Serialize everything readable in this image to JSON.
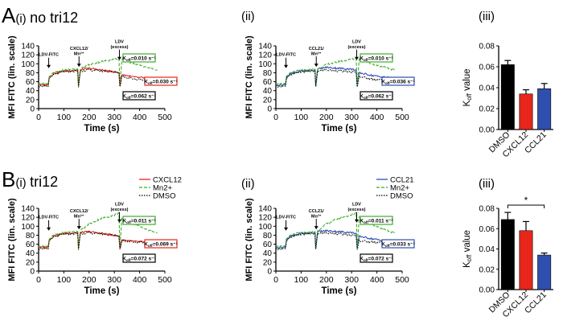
{
  "figure": {
    "row_a_letter": "A",
    "row_a_title": "no tri12",
    "row_b_letter": "B",
    "row_b_title": "tri12",
    "panel_i": "(i)",
    "panel_ii": "(ii)",
    "panel_iii": "(iii)"
  },
  "colors": {
    "red": "#e8261c",
    "green": "#3eac2c",
    "blue": "#2f4faf",
    "black": "#000000"
  },
  "chart_data": [
    {
      "id": "A-i",
      "type": "line",
      "xlabel": "Time (s)",
      "ylabel": "MFI FITC (lin. scale)",
      "xlim": [
        0,
        500
      ],
      "ylim": [
        0,
        140
      ],
      "xticks": [
        0,
        100,
        200,
        300,
        400,
        500
      ],
      "yticks": [
        0,
        20,
        40,
        60,
        80,
        100,
        120,
        140
      ],
      "annotations": [
        {
          "text": "LDV-FITC",
          "x": 40
        },
        {
          "text": "CXCL12/",
          "text2": "Mn²⁺",
          "x": 160
        },
        {
          "text": "LDV",
          "text2": "(excess)",
          "x": 320
        }
      ],
      "koff_labels": [
        {
          "prefix": "K",
          "sub": "off",
          "value": "=0.010 s⁻¹",
          "color": "#3eac2c"
        },
        {
          "prefix": "K",
          "sub": "off",
          "value": "=0.030 s⁻¹",
          "color": "#e8261c"
        },
        {
          "prefix": "K",
          "sub": "off",
          "value": "=0.062 s⁻¹",
          "color": "#000000"
        }
      ],
      "series": [
        {
          "name": "CXCL12",
          "color": "#e8261c",
          "style": "solid",
          "x": [
            0,
            38,
            42,
            60,
            100,
            155,
            158,
            165,
            200,
            250,
            300,
            318,
            322,
            330,
            380,
            430,
            470
          ],
          "y": [
            53,
            53,
            70,
            78,
            84,
            86,
            50,
            86,
            90,
            86,
            82,
            80,
            50,
            76,
            70,
            68,
            67
          ]
        },
        {
          "name": "Mn2+",
          "color": "#3eac2c",
          "style": "dashed",
          "x": [
            0,
            38,
            42,
            60,
            100,
            155,
            158,
            165,
            200,
            250,
            300,
            318,
            322,
            330,
            380,
            430,
            470
          ],
          "y": [
            55,
            55,
            72,
            80,
            86,
            88,
            50,
            88,
            98,
            105,
            110,
            112,
            50,
            110,
            100,
            92,
            86
          ]
        },
        {
          "name": "DMSO",
          "color": "#000000",
          "style": "dotted",
          "x": [
            0,
            38,
            42,
            60,
            100,
            155,
            158,
            165,
            200,
            250,
            300,
            318,
            322,
            330,
            380,
            430,
            470
          ],
          "y": [
            50,
            50,
            68,
            76,
            82,
            84,
            48,
            84,
            86,
            84,
            82,
            80,
            48,
            72,
            66,
            64,
            64
          ]
        }
      ]
    },
    {
      "id": "A-ii",
      "type": "line",
      "xlabel": "Time (s)",
      "ylabel": "MFI FITC (lin. scale)",
      "xlim": [
        0,
        500
      ],
      "ylim": [
        0,
        140
      ],
      "xticks": [
        0,
        100,
        200,
        300,
        400,
        500
      ],
      "yticks": [
        0,
        20,
        40,
        60,
        80,
        100,
        120,
        140
      ],
      "annotations": [
        {
          "text": "LDV-FITC",
          "x": 40
        },
        {
          "text": "CCL21/",
          "text2": "Mn²⁺",
          "x": 160
        },
        {
          "text": "LDV",
          "text2": "(excess)",
          "x": 320
        }
      ],
      "koff_labels": [
        {
          "prefix": "K",
          "sub": "off",
          "value": "=0.010 s⁻¹",
          "color": "#3eac2c"
        },
        {
          "prefix": "K",
          "sub": "off",
          "value": "=0.036 s⁻¹",
          "color": "#2f4faf"
        },
        {
          "prefix": "K",
          "sub": "off",
          "value": "=0.062 s⁻¹",
          "color": "#000000"
        }
      ],
      "series": [
        {
          "name": "CCL21",
          "color": "#2f4faf",
          "style": "solid",
          "x": [
            0,
            38,
            42,
            60,
            100,
            155,
            158,
            165,
            200,
            250,
            300,
            318,
            322,
            330,
            380,
            430,
            470
          ],
          "y": [
            53,
            53,
            70,
            78,
            84,
            86,
            50,
            88,
            92,
            90,
            88,
            86,
            50,
            80,
            74,
            70,
            68
          ]
        },
        {
          "name": "Mn2+",
          "color": "#3eac2c",
          "style": "dashed",
          "x": [
            0,
            38,
            42,
            60,
            100,
            155,
            158,
            165,
            200,
            250,
            300,
            318,
            322,
            330,
            380,
            430,
            470
          ],
          "y": [
            55,
            55,
            72,
            80,
            86,
            88,
            50,
            88,
            98,
            105,
            110,
            112,
            50,
            110,
            100,
            92,
            86
          ]
        },
        {
          "name": "DMSO",
          "color": "#000000",
          "style": "dotted",
          "x": [
            0,
            38,
            42,
            60,
            100,
            155,
            158,
            165,
            200,
            250,
            300,
            318,
            322,
            330,
            380,
            430,
            470
          ],
          "y": [
            50,
            50,
            68,
            76,
            82,
            84,
            48,
            84,
            86,
            84,
            82,
            80,
            48,
            72,
            66,
            64,
            64
          ]
        }
      ]
    },
    {
      "id": "A-iii",
      "type": "bar",
      "ylabel": "K",
      "ylabel_sub": "off",
      "ylabel_rest": " value",
      "categories": [
        "DMSO",
        "CXCL12",
        "CCL21"
      ],
      "values": [
        0.062,
        0.034,
        0.039
      ],
      "errors": [
        0.004,
        0.004,
        0.005
      ],
      "colors": [
        "#000000",
        "#e8261c",
        "#2f4faf"
      ],
      "ylim": [
        0,
        0.08
      ],
      "yticks": [
        0.0,
        0.02,
        0.04,
        0.06,
        0.08
      ],
      "ytick_labels": [
        "0.00",
        "0.02",
        "0.04",
        "0.06",
        "0.08"
      ]
    },
    {
      "id": "B-i",
      "type": "line",
      "xlabel": "Time (s)",
      "ylabel": "MFI FITC (lin. scale)",
      "xlim": [
        0,
        500
      ],
      "ylim": [
        0,
        140
      ],
      "xticks": [
        0,
        100,
        200,
        300,
        400,
        500
      ],
      "yticks": [
        0,
        20,
        40,
        60,
        80,
        100,
        120,
        140
      ],
      "annotations": [
        {
          "text": "LDV-FITC",
          "x": 40
        },
        {
          "text": "CXCL12/",
          "text2": "Mn²⁺",
          "x": 160
        },
        {
          "text": "LDV",
          "text2": "(excess)",
          "x": 320
        }
      ],
      "koff_labels": [
        {
          "prefix": "K",
          "sub": "off",
          "value": "=0.011 s⁻¹",
          "color": "#3eac2c"
        },
        {
          "prefix": "K",
          "sub": "off",
          "value": "=0.069 s⁻¹",
          "color": "#e8261c"
        },
        {
          "prefix": "K",
          "sub": "off",
          "value": "=0.072 s⁻¹",
          "color": "#000000"
        }
      ],
      "legend": [
        {
          "label": "CXCL12",
          "color": "#e8261c",
          "style": "solid"
        },
        {
          "label": "Mn2+",
          "color": "#3eac2c",
          "style": "dashed"
        },
        {
          "label": "DMSO",
          "color": "#000000",
          "style": "dotted"
        }
      ],
      "series": [
        {
          "name": "CXCL12",
          "color": "#e8261c",
          "style": "solid",
          "x": [
            0,
            38,
            42,
            60,
            100,
            155,
            158,
            165,
            200,
            250,
            300,
            318,
            322,
            330,
            380,
            430,
            470
          ],
          "y": [
            53,
            53,
            70,
            78,
            84,
            86,
            50,
            86,
            88,
            84,
            80,
            78,
            50,
            70,
            66,
            65,
            65
          ]
        },
        {
          "name": "Mn2+",
          "color": "#3eac2c",
          "style": "dashed",
          "x": [
            0,
            38,
            42,
            60,
            100,
            155,
            158,
            165,
            200,
            250,
            300,
            318,
            322,
            330,
            380,
            430,
            470
          ],
          "y": [
            55,
            55,
            72,
            80,
            86,
            88,
            50,
            90,
            105,
            118,
            125,
            130,
            52,
            120,
            105,
            92,
            85
          ]
        },
        {
          "name": "DMSO",
          "color": "#000000",
          "style": "dotted",
          "x": [
            0,
            38,
            42,
            60,
            100,
            155,
            158,
            165,
            200,
            250,
            300,
            318,
            322,
            330,
            380,
            430,
            470
          ],
          "y": [
            50,
            50,
            68,
            76,
            82,
            84,
            48,
            84,
            85,
            83,
            80,
            78,
            48,
            68,
            65,
            64,
            64
          ]
        }
      ]
    },
    {
      "id": "B-ii",
      "type": "line",
      "xlabel": "Time (s)",
      "ylabel": "MFI FITC (lin. scale)",
      "xlim": [
        0,
        500
      ],
      "ylim": [
        0,
        140
      ],
      "xticks": [
        0,
        100,
        200,
        300,
        400,
        500
      ],
      "yticks": [
        0,
        20,
        40,
        60,
        80,
        100,
        120,
        140
      ],
      "annotations": [
        {
          "text": "LDV-FITC",
          "x": 40
        },
        {
          "text": "CCL21/",
          "text2": "Mn²⁺",
          "x": 160
        },
        {
          "text": "LDV",
          "text2": "(excess)",
          "x": 320
        }
      ],
      "koff_labels": [
        {
          "prefix": "K",
          "sub": "off",
          "value": "=0.011 s⁻¹",
          "color": "#3eac2c"
        },
        {
          "prefix": "K",
          "sub": "off",
          "value": "=0.033 s⁻¹",
          "color": "#2f4faf"
        },
        {
          "prefix": "K",
          "sub": "off",
          "value": "=0.072 s⁻¹",
          "color": "#000000"
        }
      ],
      "legend": [
        {
          "label": "CCL21",
          "color": "#2f4faf",
          "style": "solid"
        },
        {
          "label": "Mn2+",
          "color": "#3eac2c",
          "style": "dashed"
        },
        {
          "label": "DMSO",
          "color": "#000000",
          "style": "dotted"
        }
      ],
      "series": [
        {
          "name": "CCL21",
          "color": "#2f4faf",
          "style": "solid",
          "x": [
            0,
            38,
            42,
            60,
            100,
            155,
            158,
            165,
            200,
            250,
            300,
            318,
            322,
            330,
            380,
            430,
            470
          ],
          "y": [
            53,
            53,
            70,
            78,
            84,
            86,
            50,
            88,
            90,
            88,
            86,
            84,
            50,
            78,
            72,
            68,
            67
          ]
        },
        {
          "name": "Mn2+",
          "color": "#3eac2c",
          "style": "dashed",
          "x": [
            0,
            38,
            42,
            60,
            100,
            155,
            158,
            165,
            200,
            250,
            300,
            318,
            322,
            330,
            380,
            430,
            470
          ],
          "y": [
            55,
            55,
            72,
            80,
            86,
            88,
            50,
            90,
            105,
            118,
            125,
            130,
            52,
            120,
            105,
            92,
            85
          ]
        },
        {
          "name": "DMSO",
          "color": "#000000",
          "style": "dotted",
          "x": [
            0,
            38,
            42,
            60,
            100,
            155,
            158,
            165,
            200,
            250,
            300,
            318,
            322,
            330,
            380,
            430,
            470
          ],
          "y": [
            50,
            50,
            68,
            76,
            82,
            84,
            48,
            84,
            85,
            83,
            80,
            78,
            48,
            68,
            65,
            64,
            64
          ]
        }
      ]
    },
    {
      "id": "B-iii",
      "type": "bar",
      "ylabel": "K",
      "ylabel_sub": "off",
      "ylabel_rest": " value",
      "categories": [
        "DMSO",
        "CXCL12",
        "CCL21"
      ],
      "values": [
        0.069,
        0.058,
        0.034
      ],
      "errors": [
        0.007,
        0.009,
        0.002
      ],
      "colors": [
        "#000000",
        "#e8261c",
        "#2f4faf"
      ],
      "ylim": [
        0,
        0.08
      ],
      "yticks": [
        0.0,
        0.02,
        0.04,
        0.06,
        0.08
      ],
      "ytick_labels": [
        "0.00",
        "0.02",
        "0.04",
        "0.06",
        "0.08"
      ],
      "significance": {
        "label": "*",
        "from": 0,
        "to": 2
      }
    }
  ]
}
